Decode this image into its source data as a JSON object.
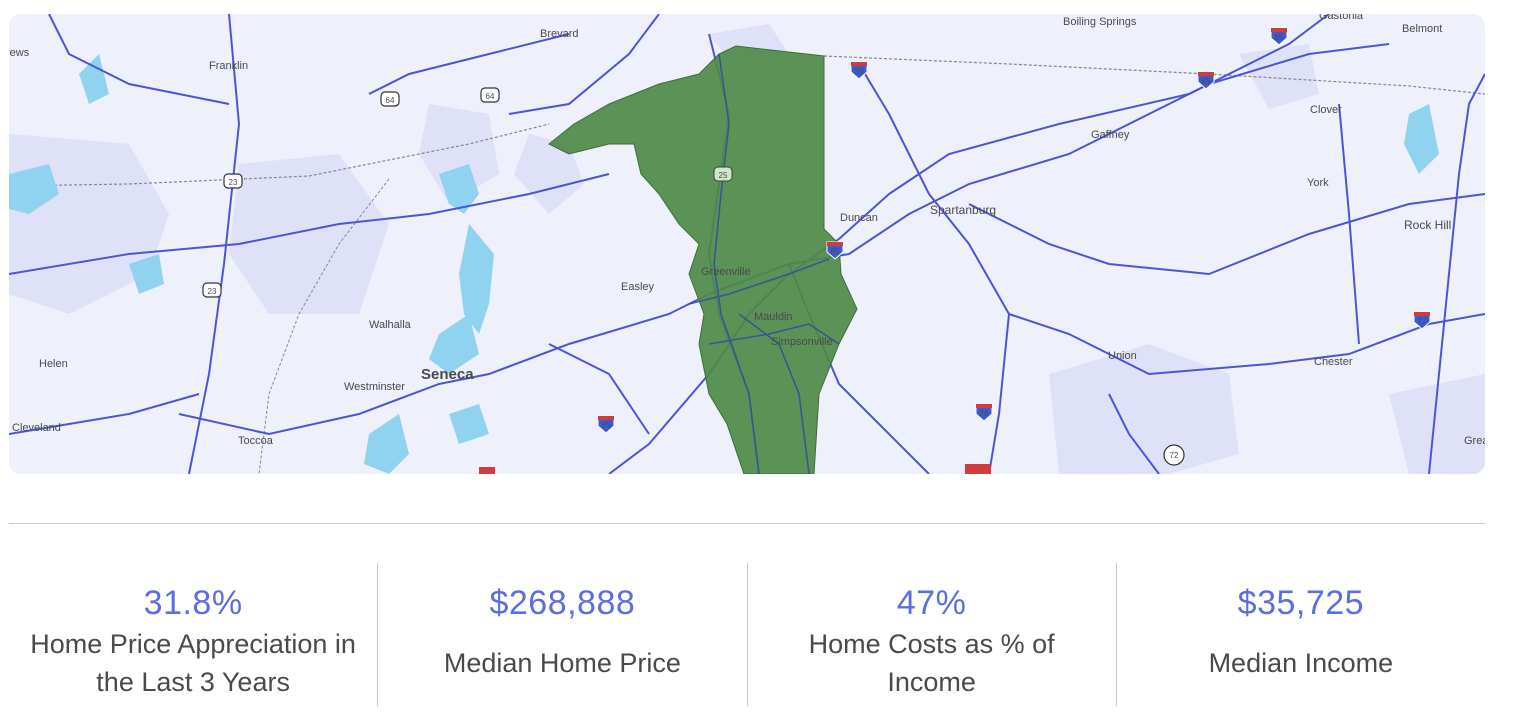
{
  "map": {
    "highlighted_region_color": "#4e8a48",
    "background_color": "#eef0fb",
    "road_color": "#4b55d9",
    "water_color": "#8fd3f0",
    "places": {
      "boiling_springs": "Boiling Springs",
      "gastonia": "Gastonia",
      "belmont": "Belmont",
      "brevard": "Brevard",
      "franklin": "Franklin",
      "clover": "Clover",
      "gaffney": "Gaffney",
      "york": "York",
      "rock_hill": "Rock Hill",
      "duncan": "Duncan",
      "spartanburg": "Spartanburg",
      "easley": "Easley",
      "greenville": "Greenville",
      "mauldin": "Mauldin",
      "simpsonville": "Simpsonville",
      "walhalla": "Walhalla",
      "helen": "Helen",
      "union": "Union",
      "chester": "Chester",
      "seneca": "Seneca",
      "westminster": "Westminster",
      "cleveland": "Cleveland",
      "toccoa": "Toccoa",
      "rews": "rews",
      "grea": "Grea"
    },
    "shields": {
      "i85_a": "85",
      "i85_b": "85",
      "i85_c": "85",
      "i85_d": "85",
      "i26_a": "26",
      "i26_b": "26",
      "i77": "77",
      "us64_a": "64",
      "us64_b": "64",
      "us23_a": "23",
      "us23_b": "23",
      "us25": "25",
      "sr72": "72"
    }
  },
  "stats": [
    {
      "value": "31.8%",
      "label": "Home Price Appreciation in the Last 3 Years"
    },
    {
      "value": "$268,888",
      "label": "Median Home Price"
    },
    {
      "value": "47%",
      "label": "Home Costs as % of Income"
    },
    {
      "value": "$35,725",
      "label": "Median Income"
    }
  ]
}
